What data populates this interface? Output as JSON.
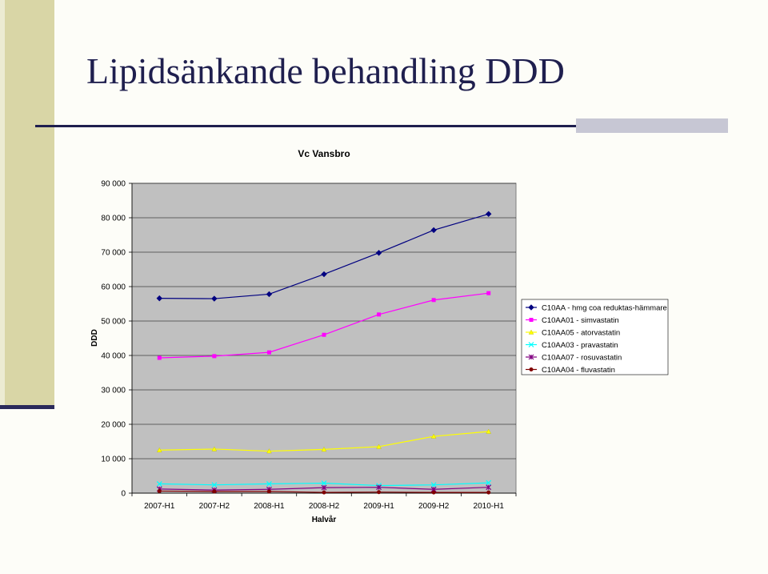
{
  "slide": {
    "title": "Lipidsänkande behandling DDD"
  },
  "chart_data": {
    "type": "line",
    "title": "Vc Vansbro",
    "xlabel": "Halvår",
    "ylabel": "DDD",
    "categories": [
      "2007-H1",
      "2007-H2",
      "2008-H1",
      "2008-H2",
      "2009-H1",
      "2009-H2",
      "2010-H1"
    ],
    "ylim": [
      0,
      90000
    ],
    "yticks": [
      0,
      10000,
      20000,
      30000,
      40000,
      50000,
      60000,
      70000,
      80000,
      90000
    ],
    "ytick_labels": [
      "0",
      "10 000",
      "20 000",
      "30 000",
      "40 000",
      "50 000",
      "60 000",
      "70 000",
      "80 000",
      "90 000"
    ],
    "grid": true,
    "legend_position": "right",
    "plot_background": "#c0c0c0",
    "series": [
      {
        "name": "C10AA - hmg coa reduktas-hämmare",
        "color": "#000080",
        "marker": "diamond",
        "values": [
          56600,
          56500,
          57800,
          63600,
          69800,
          76400,
          81100
        ]
      },
      {
        "name": "C10AA01 - simvastatin",
        "color": "#ff00ff",
        "marker": "square",
        "values": [
          39300,
          39800,
          40900,
          46000,
          51900,
          56100,
          58100
        ]
      },
      {
        "name": "C10AA05 - atorvastatin",
        "color": "#ffff00",
        "marker": "triangle",
        "values": [
          12500,
          12800,
          12200,
          12700,
          13500,
          16500,
          17900
        ]
      },
      {
        "name": "C10AA03 - pravastatin",
        "color": "#00ffff",
        "marker": "x",
        "values": [
          2700,
          2400,
          2700,
          2900,
          2200,
          2400,
          3000
        ]
      },
      {
        "name": "C10AA07 - rosuvastatin",
        "color": "#800080",
        "marker": "star",
        "values": [
          1200,
          900,
          1100,
          1600,
          1700,
          1100,
          1700
        ]
      },
      {
        "name": "C10AA04 - fluvastatin",
        "color": "#800000",
        "marker": "circle",
        "values": [
          600,
          500,
          500,
          200,
          300,
          200,
          200
        ]
      }
    ]
  }
}
